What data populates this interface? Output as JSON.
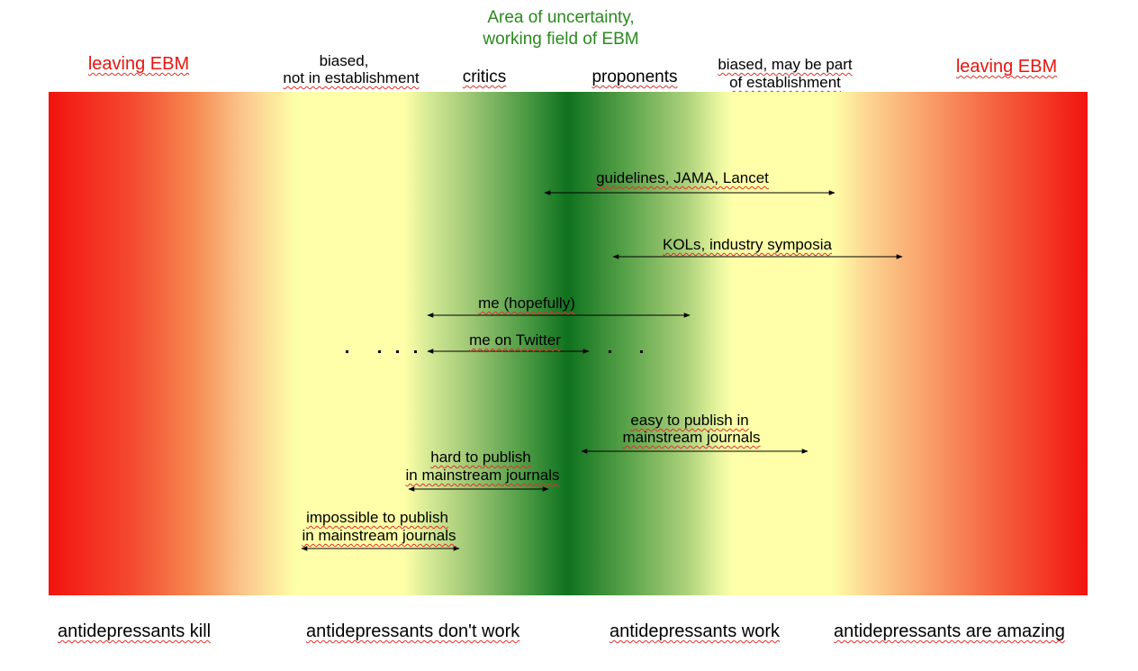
{
  "colors": {
    "red": "#f2130f",
    "yellow": "#feffa8",
    "green": "#11731f",
    "title_green": "#2a8a1e",
    "header_red": "#e8150f",
    "squiggle": "#e0302a"
  },
  "title": {
    "line1": "Area of uncertainty,",
    "line2": "working field of EBM"
  },
  "headers": {
    "leaving_left": "leaving EBM",
    "biased_not_in_line1": "biased,",
    "biased_not_in_line2": "not in establishment",
    "critics": "critics",
    "proponents": "proponents",
    "biased_part_line1": "biased, may be part",
    "biased_part_line2": "of establishment",
    "leaving_right": "leaving EBM"
  },
  "ranges": {
    "guidelines": "guidelines, JAMA, Lancet",
    "kols": "KOLs, industry symposia",
    "me_hopefully": "me (hopefully)",
    "me_twitter": "me on Twitter",
    "easy_line1": "easy to publish in",
    "easy_line2": "mainstream journals",
    "hard_line1": "hard to publish",
    "hard_line2": "in mainstream journals",
    "impossible_line1": "impossible to publish",
    "impossible_line2": "in mainstream journals"
  },
  "bottom_labels": {
    "kill": "antidepressants kill",
    "dont_work": "antidepressants don't work",
    "work": "antidepressants work",
    "amazing": "antidepressants are amazing"
  }
}
